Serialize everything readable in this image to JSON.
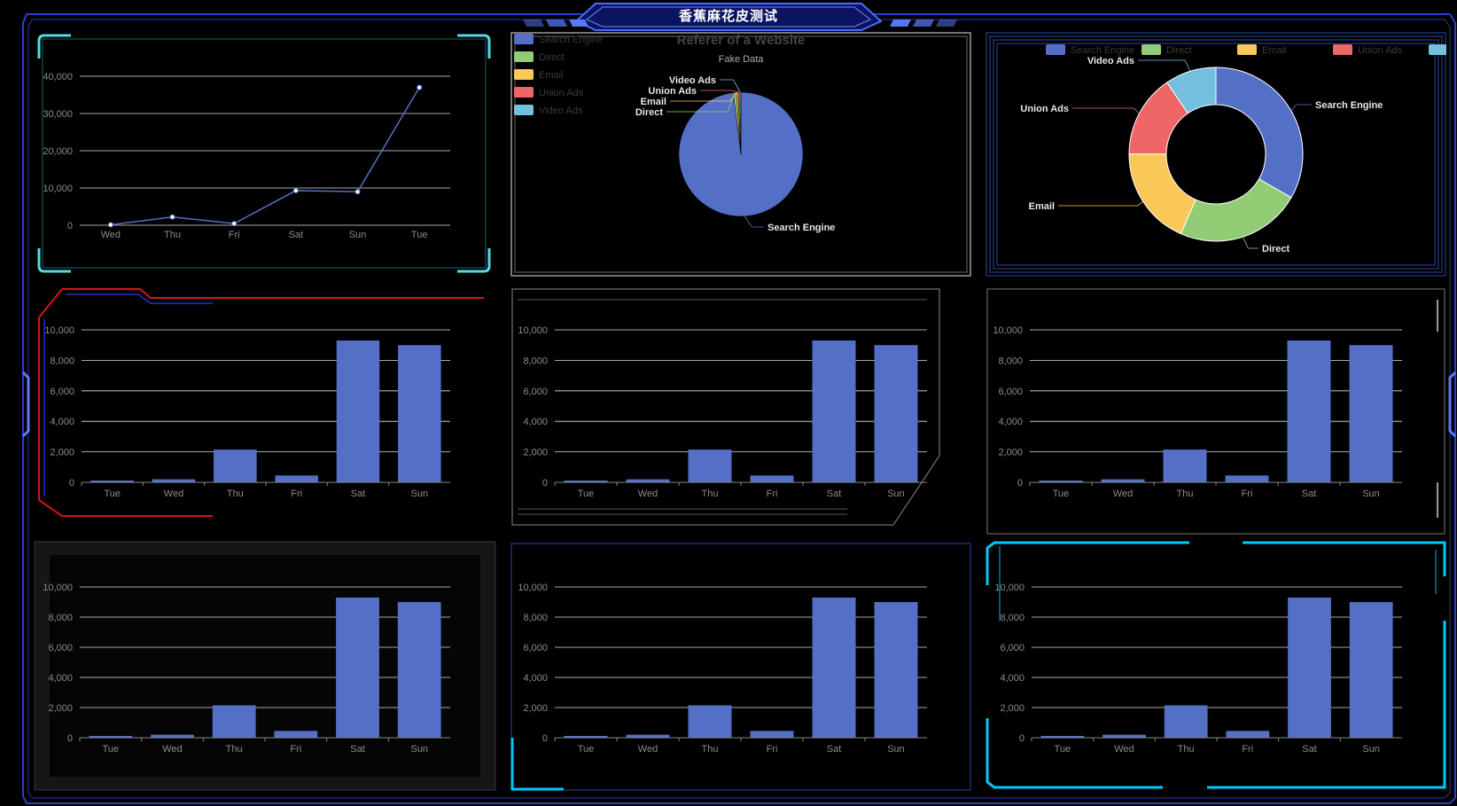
{
  "header": {
    "title": "香蕉麻花皮测试"
  },
  "colors": {
    "series": "#5470c6",
    "pie": [
      "#5470c6",
      "#91cc75",
      "#fac858",
      "#ee6666",
      "#73c0de"
    ],
    "frame": "#3a57e8",
    "cyan": "#00c8ff",
    "red": "#d6141c"
  },
  "line_chart": {
    "type": "line",
    "categories": [
      "Wed",
      "Thu",
      "Fri",
      "Sat",
      "Sun",
      "Tue"
    ],
    "values": [
      120,
      2200,
      450,
      9300,
      9000,
      37000
    ],
    "yticks": [
      "0",
      "10,000",
      "20,000",
      "30,000",
      "40,000"
    ],
    "ylim": [
      0,
      40000
    ]
  },
  "pie_chart": {
    "type": "pie",
    "title": "Referer of a Website",
    "subtitle": "Fake Data",
    "legend": [
      "Search Engine",
      "Direct",
      "Email",
      "Union Ads",
      "Video Ads"
    ],
    "labels": [
      "Search Engine",
      "Direct",
      "Email",
      "Union Ads",
      "Video Ads"
    ],
    "values": [
      1048,
      8,
      5,
      5,
      3
    ]
  },
  "donut_chart": {
    "type": "pie",
    "legend": [
      "Search Engine",
      "Direct",
      "Email",
      "Union Ads",
      "Video Ads"
    ],
    "labels": [
      "Search Engine",
      "Direct",
      "Email",
      "Union Ads",
      "Video Ads"
    ],
    "values": [
      1048,
      735,
      580,
      484,
      300
    ]
  },
  "bar_chart": {
    "type": "bar",
    "categories": [
      "Tue",
      "Wed",
      "Thu",
      "Fri",
      "Sat",
      "Sun"
    ],
    "values": [
      120,
      200,
      2150,
      450,
      9300,
      9000
    ],
    "yticks": [
      "0",
      "2,000",
      "4,000",
      "6,000",
      "8,000",
      "10,000"
    ],
    "ylim": [
      0,
      10000
    ]
  }
}
